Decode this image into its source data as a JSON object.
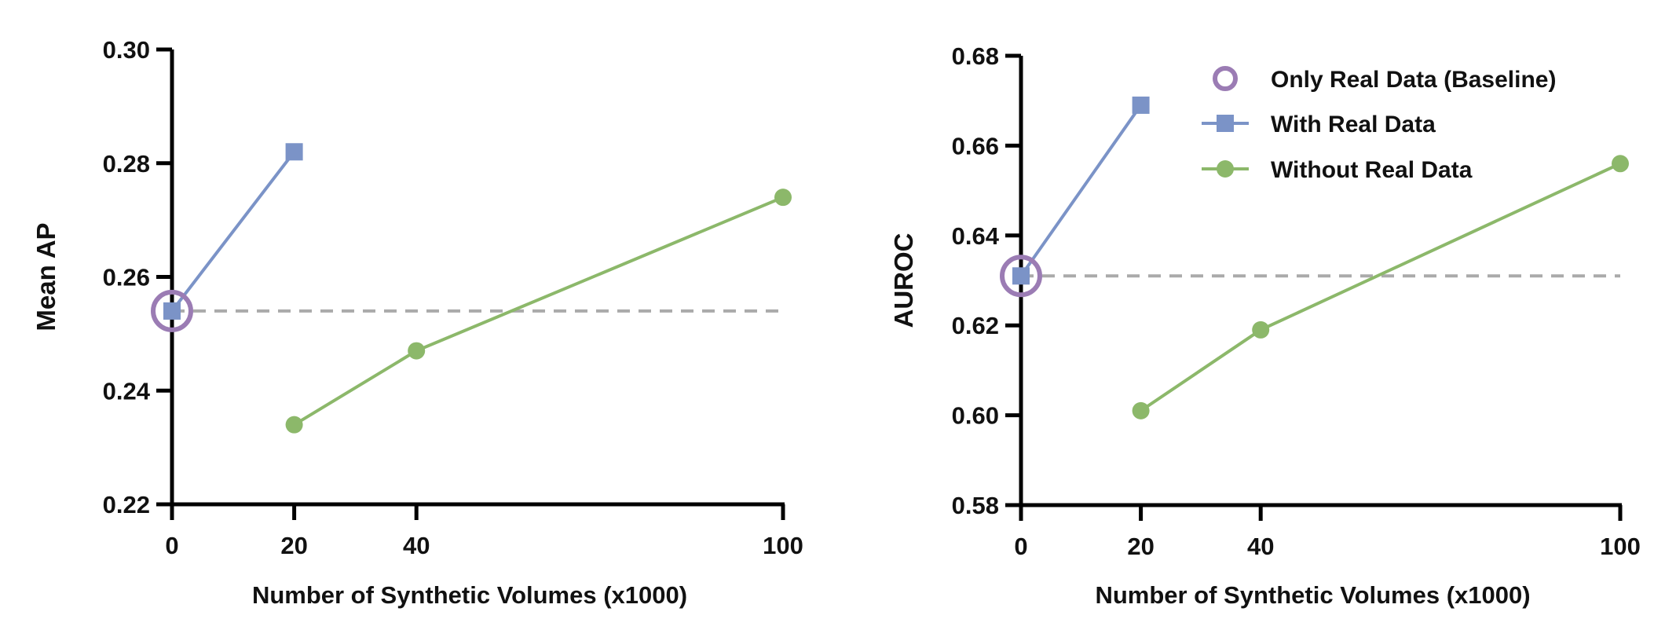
{
  "chart_data": [
    {
      "type": "line",
      "xlabel": "Number of Synthetic Volumes (x1000)",
      "ylabel": "Mean AP",
      "xlim": [
        0,
        100
      ],
      "ylim": [
        0.22,
        0.3
      ],
      "xticks": [
        0,
        20,
        40,
        100
      ],
      "yticks": [
        "0.22",
        "0.24",
        "0.26",
        "0.28",
        "0.30"
      ],
      "grid": false,
      "baseline": {
        "name": "Only Real Data (Baseline)",
        "x": 0,
        "y": 0.254,
        "color": "#9b7cb4"
      },
      "series": [
        {
          "name": "With Real Data",
          "marker": "square",
          "color": "#7b93c7",
          "x": [
            0,
            20
          ],
          "y": [
            0.254,
            0.282
          ]
        },
        {
          "name": "Without Real Data",
          "marker": "circle",
          "color": "#8cb86a",
          "x": [
            20,
            40,
            100
          ],
          "y": [
            0.234,
            0.247,
            0.274
          ]
        }
      ]
    },
    {
      "type": "line",
      "xlabel": "Number of Synthetic Volumes (x1000)",
      "ylabel": "AUROC",
      "xlim": [
        0,
        100
      ],
      "ylim": [
        0.58,
        0.68
      ],
      "xticks": [
        0,
        20,
        40,
        100
      ],
      "yticks": [
        "0.58",
        "0.60",
        "0.62",
        "0.64",
        "0.66",
        "0.68"
      ],
      "grid": false,
      "legend": "top-right",
      "baseline": {
        "name": "Only Real Data (Baseline)",
        "x": 0,
        "y": 0.631,
        "color": "#9b7cb4"
      },
      "series": [
        {
          "name": "With Real Data",
          "marker": "square",
          "color": "#7b93c7",
          "x": [
            0,
            20
          ],
          "y": [
            0.631,
            0.669
          ]
        },
        {
          "name": "Without Real Data",
          "marker": "circle",
          "color": "#8cb86a",
          "x": [
            20,
            40,
            100
          ],
          "y": [
            0.601,
            0.619,
            0.656
          ]
        }
      ]
    }
  ],
  "baseline_line_color": "#aaaaaa"
}
